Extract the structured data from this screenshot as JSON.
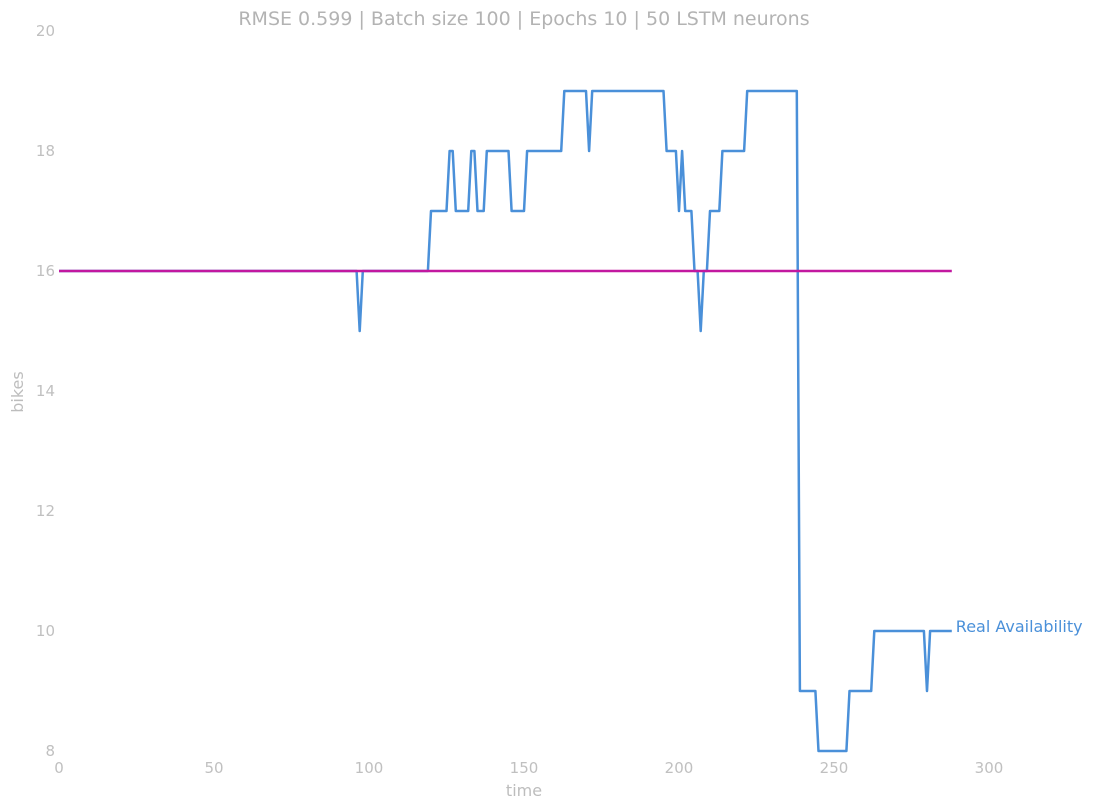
{
  "chart_data": {
    "type": "line",
    "title": "RMSE 0.599 | Batch size 100 | Epochs 10 |  50 LSTM neurons",
    "xlabel": "time",
    "ylabel": "bikes",
    "xlim": [
      0,
      330
    ],
    "ylim": [
      8,
      20
    ],
    "xticks": [
      0,
      50,
      100,
      150,
      200,
      250,
      300
    ],
    "yticks": [
      8,
      10,
      12,
      14,
      16,
      18,
      20
    ],
    "grid": false,
    "series": [
      {
        "name": "Real Availability",
        "color": "#4a90d9",
        "labeled_at_end": true,
        "x": [
          0,
          96,
          97,
          98,
          119,
          120,
          125,
          126,
          127,
          128,
          132,
          133,
          134,
          135,
          137,
          138,
          145,
          146,
          150,
          151,
          162,
          163,
          170,
          171,
          172,
          195,
          196,
          199,
          200,
          201,
          202,
          204,
          205,
          206,
          207,
          208,
          209,
          210,
          213,
          214,
          221,
          222,
          238,
          239,
          244,
          245,
          254,
          255,
          262,
          263,
          279,
          280,
          281,
          288
        ],
        "y": [
          16,
          16,
          15,
          16,
          16,
          17,
          17,
          18,
          18,
          17,
          17,
          18,
          18,
          17,
          17,
          18,
          18,
          17,
          17,
          18,
          18,
          19,
          19,
          18,
          19,
          19,
          18,
          18,
          17,
          18,
          17,
          17,
          16,
          16,
          15,
          16,
          16,
          17,
          17,
          18,
          18,
          19,
          19,
          9,
          9,
          8,
          8,
          9,
          9,
          10,
          10,
          9,
          10,
          10
        ]
      },
      {
        "name": "",
        "color": "#c218a0",
        "x": [
          0,
          288
        ],
        "y": [
          16,
          16
        ]
      }
    ]
  }
}
